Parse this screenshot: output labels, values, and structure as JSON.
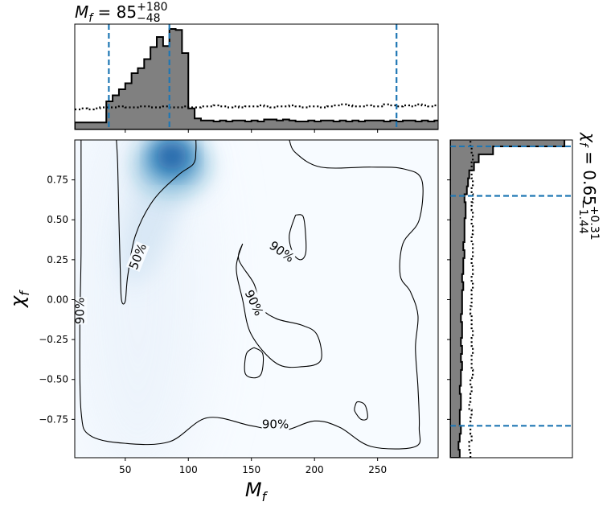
{
  "colors": {
    "hist_fill": "#808080",
    "hist_edge": "#000000",
    "quantile_line": "#1f77b4",
    "density_colormap": "Blues",
    "contour": "#000000"
  },
  "chart_data": [
    {
      "id": "top-marginal",
      "type": "histogram",
      "variable": "M_f",
      "title_base": "M",
      "title_sub": "f",
      "title_value": " = 85",
      "title_sup": "+180",
      "title_lowsub": "−48",
      "xlim": [
        10,
        298
      ],
      "bin_edges_start": 10,
      "bin_width": 5,
      "posterior_density": [
        0.07,
        0.07,
        0.07,
        0.07,
        0.07,
        0.28,
        0.34,
        0.4,
        0.46,
        0.56,
        0.61,
        0.7,
        0.82,
        0.92,
        0.83,
        1.0,
        0.99,
        0.76,
        0.21,
        0.11,
        0.09,
        0.09,
        0.08,
        0.09,
        0.08,
        0.09,
        0.09,
        0.08,
        0.09,
        0.08,
        0.1,
        0.1,
        0.09,
        0.1,
        0.09,
        0.08,
        0.08,
        0.09,
        0.08,
        0.09,
        0.09,
        0.08,
        0.09,
        0.08,
        0.09,
        0.08,
        0.09,
        0.09,
        0.09,
        0.08,
        0.09,
        0.08,
        0.09,
        0.09,
        0.08,
        0.09,
        0.08,
        0.09
      ],
      "prior_density": [
        0.2,
        0.21,
        0.2,
        0.21,
        0.22,
        0.22,
        0.22,
        0.23,
        0.22,
        0.22,
        0.23,
        0.23,
        0.22,
        0.22,
        0.23,
        0.22,
        0.22,
        0.23,
        0.22,
        0.22,
        0.23,
        0.23,
        0.24,
        0.23,
        0.22,
        0.23,
        0.22,
        0.23,
        0.23,
        0.24,
        0.23,
        0.22,
        0.23,
        0.23,
        0.24,
        0.23,
        0.22,
        0.23,
        0.23,
        0.22,
        0.23,
        0.24,
        0.25,
        0.24,
        0.23,
        0.23,
        0.24,
        0.23,
        0.23,
        0.25,
        0.24,
        0.23,
        0.24,
        0.23,
        0.25,
        0.24,
        0.23,
        0.24
      ],
      "quantile_lines": [
        37,
        85,
        265
      ]
    },
    {
      "id": "joint",
      "type": "heatmap",
      "xlabel_base": "M",
      "xlabel_sub": "f",
      "ylabel_base": "χ",
      "ylabel_sub": "f",
      "xlim": [
        10,
        298
      ],
      "ylim": [
        -0.99,
        1.0
      ],
      "x_ticks": [
        "50",
        "100",
        "150",
        "200",
        "250"
      ],
      "y_ticks": [
        "0.75",
        "0.50",
        "0.25",
        "0.00",
        "−0.25",
        "−0.50",
        "−0.75"
      ],
      "density_peak": {
        "x": 87,
        "y": 0.9
      },
      "contours": [
        {
          "level": "50%",
          "label_position": {
            "x": 60,
            "y": 0.27
          },
          "points": [
            [
              43,
              1.0
            ],
            [
              44,
              0.85
            ],
            [
              45,
              0.5
            ],
            [
              46,
              0.2
            ],
            [
              47,
              0.0
            ],
            [
              50,
              -0.01
            ],
            [
              52,
              0.15
            ],
            [
              58,
              0.4
            ],
            [
              72,
              0.62
            ],
            [
              92,
              0.78
            ],
            [
              104,
              0.85
            ],
            [
              106,
              0.93
            ],
            [
              106,
              1.0
            ]
          ]
        },
        {
          "level": "90%",
          "label_position": {
            "x": 14,
            "y": -0.07
          },
          "points": [
            [
              15,
              1.0
            ],
            [
              15,
              0.88
            ],
            [
              15,
              0.3
            ],
            [
              14,
              -0.2
            ],
            [
              15,
              -0.7
            ],
            [
              22,
              -0.85
            ],
            [
              50,
              -0.9
            ],
            [
              85,
              -0.89
            ],
            [
              115,
              -0.74
            ],
            [
              150,
              -0.79
            ],
            [
              175,
              -0.82
            ],
            [
              200,
              -0.76
            ],
            [
              220,
              -0.8
            ],
            [
              245,
              -0.92
            ],
            [
              280,
              -0.92
            ],
            [
              283,
              -0.8
            ],
            [
              282,
              -0.55
            ],
            [
              280,
              -0.3
            ],
            [
              282,
              -0.1
            ],
            [
              276,
              0.05
            ],
            [
              268,
              0.15
            ],
            [
              270,
              0.35
            ],
            [
              283,
              0.5
            ],
            [
              285,
              0.75
            ],
            [
              270,
              0.82
            ],
            [
              245,
              0.83
            ],
            [
              205,
              0.83
            ],
            [
              185,
              0.92
            ],
            [
              180,
              1.0
            ]
          ]
        },
        {
          "level": "90%",
          "label_position": {
            "x": 174,
            "y": 0.3
          },
          "points": [
            [
              185,
              0.53
            ],
            [
              180,
              0.4
            ],
            [
              183,
              0.29
            ],
            [
              189,
              0.25
            ],
            [
              193,
              0.29
            ],
            [
              193,
              0.4
            ],
            [
              191,
              0.52
            ],
            [
              185,
              0.53
            ]
          ]
        },
        {
          "level": "90%",
          "label_position": {
            "x": 152,
            "y": -0.02
          },
          "points": [
            [
              143,
              0.35
            ],
            [
              140,
              0.25
            ],
            [
              152,
              0.1
            ],
            [
              158,
              -0.05
            ],
            [
              170,
              -0.12
            ],
            [
              190,
              -0.16
            ],
            [
              202,
              -0.22
            ],
            [
              205,
              -0.38
            ],
            [
              190,
              -0.42
            ],
            [
              170,
              -0.4
            ],
            [
              150,
              -0.22
            ],
            [
              143,
              0.0
            ],
            [
              138,
              0.2
            ],
            [
              143,
              0.35
            ]
          ]
        },
        {
          "level": "90%",
          "label_position": {
            "x": -100,
            "y": -100
          },
          "points": [
            [
              152,
              -0.3
            ],
            [
              146,
              -0.34
            ],
            [
              145,
              -0.46
            ],
            [
              152,
              -0.49
            ],
            [
              158,
              -0.46
            ],
            [
              159,
              -0.34
            ],
            [
              152,
              -0.3
            ]
          ]
        },
        {
          "level": "90%",
          "label_position": {
            "x": 169,
            "y": -0.78
          },
          "points": [
            [
              232,
              -0.67
            ],
            [
              234,
              -0.64
            ],
            [
              240,
              -0.66
            ],
            [
              242,
              -0.74
            ],
            [
              237,
              -0.75
            ],
            [
              232,
              -0.7
            ],
            [
              232,
              -0.67
            ]
          ]
        }
      ]
    },
    {
      "id": "right-marginal",
      "type": "histogram",
      "orientation": "horizontal",
      "variable": "chi_f",
      "title_base": "χ",
      "title_sub": "f",
      "title_value": " = 0.65",
      "title_sup": "+0.31",
      "title_lowsub": "−1.44",
      "ylim": [
        -0.99,
        1.0
      ],
      "bin_edges_start": -0.99,
      "bin_width": 0.05,
      "posterior_density": [
        0.08,
        0.07,
        0.08,
        0.09,
        0.08,
        0.08,
        0.09,
        0.09,
        0.08,
        0.09,
        0.09,
        0.1,
        0.09,
        0.1,
        0.09,
        0.1,
        0.1,
        0.09,
        0.1,
        0.1,
        0.1,
        0.11,
        0.1,
        0.11,
        0.11,
        0.12,
        0.11,
        0.12,
        0.12,
        0.12,
        0.13,
        0.13,
        0.12,
        0.14,
        0.15,
        0.16,
        0.2,
        0.24,
        0.36,
        0.96
      ],
      "prior_density": [
        0.17,
        0.16,
        0.18,
        0.17,
        0.17,
        0.18,
        0.16,
        0.17,
        0.18,
        0.17,
        0.19,
        0.18,
        0.18,
        0.19,
        0.18,
        0.19,
        0.18,
        0.18,
        0.17,
        0.18,
        0.18,
        0.19,
        0.18,
        0.19,
        0.18,
        0.19,
        0.19,
        0.18,
        0.19,
        0.18,
        0.19,
        0.18,
        0.19,
        0.18,
        0.19,
        0.18,
        0.18,
        0.19,
        0.18,
        0.17
      ],
      "quantile_lines": [
        -0.79,
        0.65,
        0.96
      ]
    }
  ]
}
